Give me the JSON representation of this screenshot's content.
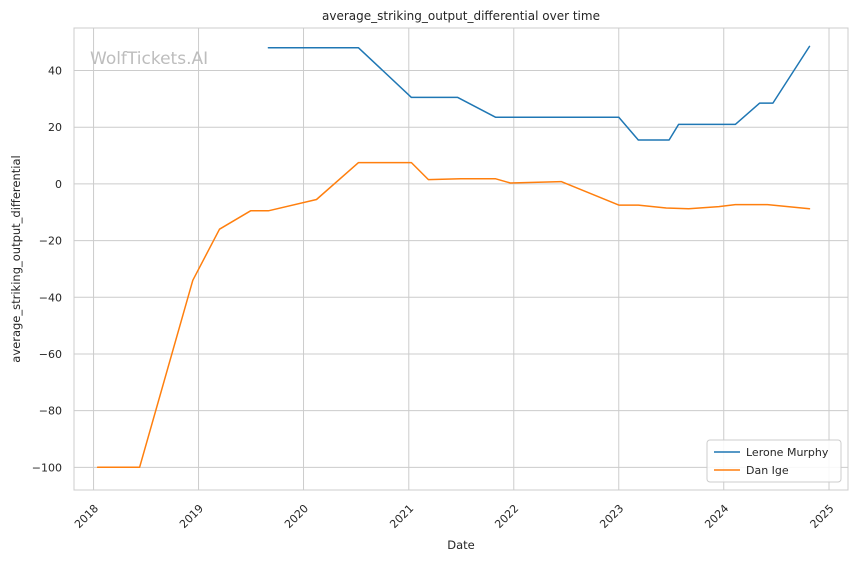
{
  "chart_data": {
    "type": "line",
    "title": "average_striking_output_differential over time",
    "xlabel": "Date",
    "ylabel": "average_striking_output_differential",
    "watermark": "WolfTickets.AI",
    "xlim": [
      "2017-10-25",
      "2025-03-08"
    ],
    "ylim": [
      -108,
      55
    ],
    "x_ticks": [
      "2018",
      "2019",
      "2020",
      "2021",
      "2022",
      "2023",
      "2024",
      "2025"
    ],
    "y_ticks": [
      40,
      20,
      0,
      -20,
      -40,
      -60,
      -80,
      -100
    ],
    "y_tick_labels": [
      "40",
      "20",
      "0",
      "−20",
      "−40",
      "−60",
      "−80",
      "−100"
    ],
    "grid": true,
    "legend_position": "lower-right",
    "series": [
      {
        "name": "Lerone Murphy",
        "color": "#1f77b4",
        "points": [
          [
            "2019-09-01",
            48
          ],
          [
            "2020-07-10",
            48
          ],
          [
            "2021-01-10",
            30.5
          ],
          [
            "2021-06-20",
            30.5
          ],
          [
            "2021-10-30",
            23.5
          ],
          [
            "2023-01-01",
            23.5
          ],
          [
            "2023-03-10",
            15.5
          ],
          [
            "2023-06-25",
            15.5
          ],
          [
            "2023-07-28",
            21
          ],
          [
            "2024-02-10",
            21
          ],
          [
            "2024-05-05",
            28.5
          ],
          [
            "2024-06-20",
            28.5
          ],
          [
            "2024-10-25",
            48.5
          ]
        ]
      },
      {
        "name": "Dan Ige",
        "color": "#ff7f0e",
        "points": [
          [
            "2018-01-15",
            -100
          ],
          [
            "2018-06-10",
            -100
          ],
          [
            "2018-12-12",
            -34
          ],
          [
            "2019-03-15",
            -16
          ],
          [
            "2019-07-01",
            -9.5
          ],
          [
            "2019-09-01",
            -9.5
          ],
          [
            "2020-02-15",
            -5.5
          ],
          [
            "2020-07-10",
            7.5
          ],
          [
            "2021-01-10",
            7.5
          ],
          [
            "2021-03-10",
            1.5
          ],
          [
            "2021-07-01",
            1.8
          ],
          [
            "2021-10-30",
            1.8
          ],
          [
            "2021-12-20",
            0.3
          ],
          [
            "2022-06-15",
            0.8
          ],
          [
            "2023-01-01",
            -7.5
          ],
          [
            "2023-03-10",
            -7.5
          ],
          [
            "2023-06-15",
            -8.5
          ],
          [
            "2023-09-01",
            -8.8
          ],
          [
            "2023-12-15",
            -8
          ],
          [
            "2024-02-10",
            -7.3
          ],
          [
            "2024-06-01",
            -7.3
          ],
          [
            "2024-10-25",
            -8.8
          ]
        ]
      }
    ]
  }
}
